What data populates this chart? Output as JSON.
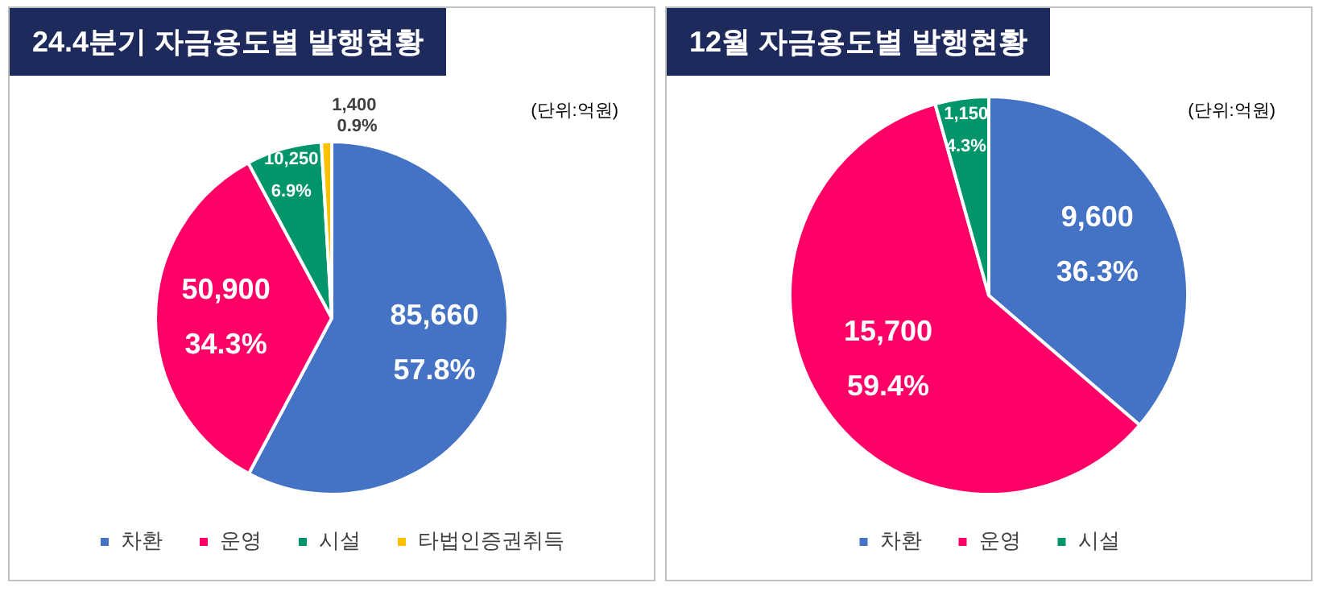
{
  "chart_data": [
    {
      "type": "pie",
      "title": "24.4분기 자금용도별 발행현황",
      "categories": [
        "차환",
        "운영",
        "시설",
        "타법인증권취득"
      ],
      "values": [
        85660,
        50900,
        10250,
        1400
      ],
      "colors": [
        "#4472c4",
        "#ff0066",
        "#00956a",
        "#ffc000"
      ],
      "value_labels": [
        "85,660\n57.8%",
        "50,900\n34.3%",
        "10,250\n6.9%",
        "1,400\n0.9%"
      ],
      "legend": "bottom",
      "annotations": [
        "(단위:억원)"
      ]
    },
    {
      "type": "pie",
      "title": "12월 자금용도별 발행현황",
      "categories": [
        "차환",
        "운영",
        "시설"
      ],
      "values": [
        9600,
        15700,
        1150
      ],
      "colors": [
        "#4472c4",
        "#ff0066",
        "#00956a"
      ],
      "value_labels": [
        "9,600\n36.3%",
        "15,700\n59.4%",
        "1,150\n4.3%"
      ],
      "legend": "bottom",
      "annotations": [
        "(단위:억원)"
      ]
    }
  ]
}
